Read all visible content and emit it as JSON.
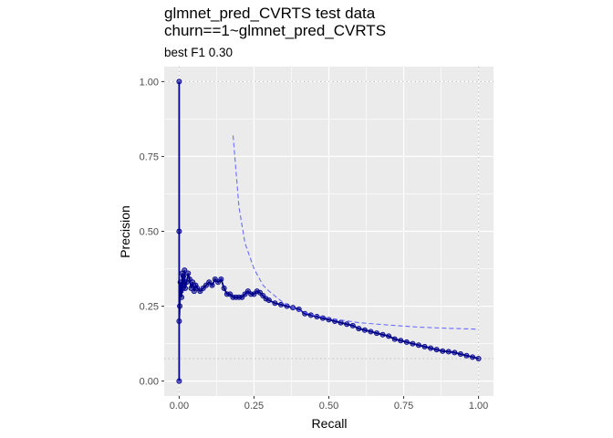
{
  "chart_data": {
    "type": "line",
    "title": "glmnet_pred_CVRTS test data",
    "title_line2": "churn==1~glmnet_pred_CVRTS",
    "subtitle": "best F1 0.30",
    "xlabel": "Recall",
    "ylabel": "Precision",
    "xlim": [
      -0.05,
      1.05
    ],
    "ylim": [
      -0.05,
      1.05
    ],
    "x_ticks": [
      0.0,
      0.25,
      0.5,
      0.75,
      1.0
    ],
    "x_tick_labels": [
      "0.00",
      "0.25",
      "0.50",
      "0.75",
      "1.00"
    ],
    "y_ticks": [
      0.0,
      0.25,
      0.5,
      0.75,
      1.0
    ],
    "y_tick_labels": [
      "0.00",
      "0.25",
      "0.50",
      "0.75",
      "1.00"
    ],
    "grid": true,
    "reference_lines": {
      "horizontal": [
        1.0,
        0.075
      ],
      "vertical": [
        0.0,
        1.0
      ]
    },
    "colors": {
      "series": "#00008b",
      "iso_f1": "#6b6bff",
      "panel": "#ebebeb",
      "grid": "#ffffff",
      "ref": "#c8c8c8"
    },
    "series": [
      {
        "style": "points+line",
        "x": [
          0.0,
          0.0,
          0.0,
          0.0,
          0.002,
          0.004,
          0.006,
          0.008,
          0.01,
          0.012,
          0.014,
          0.016,
          0.018,
          0.02,
          0.025,
          0.03,
          0.035,
          0.04,
          0.045,
          0.05,
          0.055,
          0.06,
          0.07,
          0.08,
          0.09,
          0.1,
          0.11,
          0.12,
          0.13,
          0.14,
          0.15,
          0.16,
          0.17,
          0.18,
          0.19,
          0.2,
          0.21,
          0.22,
          0.23,
          0.24,
          0.25,
          0.26,
          0.27,
          0.28,
          0.29,
          0.3,
          0.32,
          0.34,
          0.36,
          0.38,
          0.4,
          0.42,
          0.44,
          0.46,
          0.48,
          0.5,
          0.52,
          0.54,
          0.56,
          0.58,
          0.6,
          0.62,
          0.64,
          0.66,
          0.68,
          0.7,
          0.72,
          0.74,
          0.76,
          0.78,
          0.8,
          0.82,
          0.84,
          0.86,
          0.88,
          0.9,
          0.92,
          0.94,
          0.96,
          0.98,
          1.0
        ],
        "y": [
          0.0,
          1.0,
          0.5,
          0.2,
          0.25,
          0.33,
          0.3,
          0.28,
          0.36,
          0.31,
          0.35,
          0.32,
          0.37,
          0.31,
          0.33,
          0.36,
          0.34,
          0.31,
          0.33,
          0.3,
          0.32,
          0.31,
          0.3,
          0.31,
          0.32,
          0.33,
          0.32,
          0.34,
          0.33,
          0.34,
          0.31,
          0.29,
          0.29,
          0.28,
          0.28,
          0.28,
          0.28,
          0.29,
          0.3,
          0.29,
          0.29,
          0.3,
          0.295,
          0.285,
          0.275,
          0.27,
          0.26,
          0.255,
          0.25,
          0.245,
          0.24,
          0.225,
          0.22,
          0.215,
          0.21,
          0.205,
          0.2,
          0.195,
          0.19,
          0.185,
          0.175,
          0.17,
          0.165,
          0.16,
          0.155,
          0.15,
          0.14,
          0.135,
          0.13,
          0.125,
          0.12,
          0.115,
          0.11,
          0.105,
          0.1,
          0.098,
          0.095,
          0.09,
          0.085,
          0.08,
          0.075
        ]
      },
      {
        "style": "dashed",
        "x": [
          0.18,
          0.2,
          0.22,
          0.25,
          0.28,
          0.3,
          0.35,
          0.4,
          0.45,
          0.5,
          0.6,
          0.7,
          0.8,
          0.9,
          1.0
        ],
        "y": [
          0.82,
          0.58,
          0.46,
          0.375,
          0.32,
          0.3,
          0.26,
          0.235,
          0.22,
          0.21,
          0.195,
          0.187,
          0.18,
          0.176,
          0.173
        ]
      }
    ]
  }
}
